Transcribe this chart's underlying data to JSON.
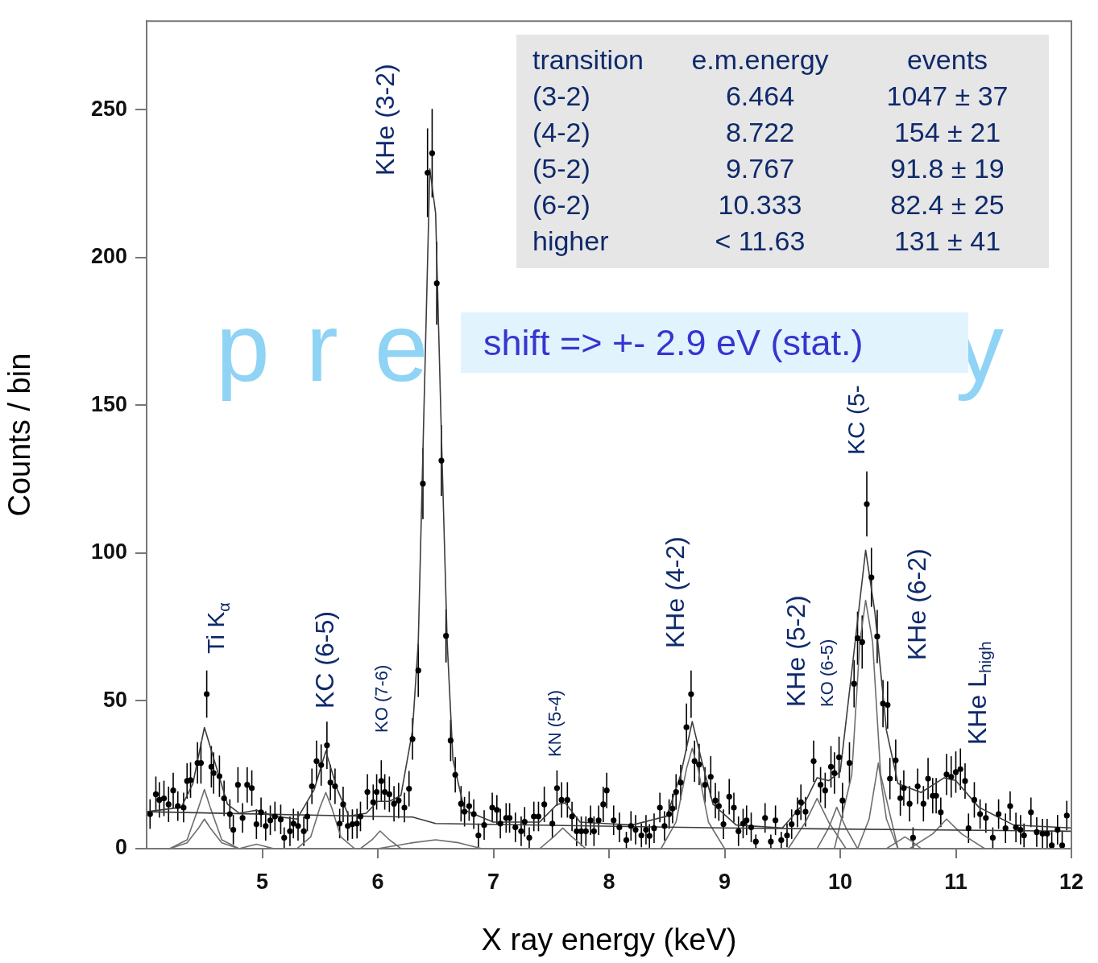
{
  "chart_data": {
    "type": "scatter",
    "xlabel": "X ray energy (keV)",
    "ylabel": "Counts / bin",
    "xlim": [
      4,
      12
    ],
    "xticks": [
      5,
      6,
      7,
      8,
      9,
      10,
      11,
      12
    ],
    "ylim": [
      0,
      280
    ],
    "yticks": [
      0,
      50,
      100,
      150,
      200,
      250
    ],
    "grid": false,
    "legend": false,
    "line_style": "solid",
    "annotations": [
      "transition",
      "e.m.energy",
      "events",
      "(3-2)",
      "6.464",
      "1047 ± 37",
      "(4-2)",
      "8.722",
      "154 ± 21",
      "(5-2)",
      "9.767",
      "91.8 ± 19",
      "(6-2)",
      "10.333",
      "82.4 ± 25",
      "higher",
      "< 11.63",
      "131 ± 41",
      "pre",
      "y",
      "shift => +- 2.9 eV (stat.)",
      "Ti K$_{α}$",
      "KC (6-5)",
      "KO (7-6)",
      "KHe (3-2)",
      "KN (5-4)",
      "KHe (4-2)",
      "KHe (5-2)",
      "KO (6-5)",
      "KC (5-",
      "KHe (6-2)",
      "KHe L$_{high}$"
    ],
    "series": [
      {
        "type": "scatter",
        "marker": "circle",
        "color": "#000000",
        "x": [
          4.03,
          4.08,
          4.11,
          4.15,
          4.19,
          4.23,
          4.27,
          4.32,
          4.35,
          4.38,
          4.44,
          4.47,
          4.52,
          4.56,
          4.58,
          4.63,
          4.67,
          4.72,
          4.75,
          4.79,
          4.83,
          4.87,
          4.91,
          4.95,
          4.99,
          5.03,
          5.07,
          5.11,
          5.16,
          5.19,
          5.24,
          5.27,
          5.31,
          5.36,
          5.39,
          5.43,
          5.47,
          5.51,
          5.56,
          5.59,
          5.63,
          5.67,
          5.7,
          5.74,
          5.78,
          5.82,
          5.85,
          5.91,
          5.96,
          5.99,
          6.03,
          6.06,
          6.1,
          6.14,
          6.18,
          6.23,
          6.27,
          6.3,
          6.35,
          6.39,
          6.43,
          6.47,
          6.51,
          6.55,
          6.59,
          6.63,
          6.67,
          6.72,
          6.75,
          6.79,
          6.83,
          6.87,
          6.92,
          6.99,
          7.03,
          7.06,
          7.11,
          7.14,
          7.19,
          7.24,
          7.27,
          7.31,
          7.35,
          7.39,
          7.44,
          7.51,
          7.55,
          7.59,
          7.64,
          7.68,
          7.72,
          7.76,
          7.8,
          7.84,
          7.87,
          7.91,
          7.95,
          7.98,
          8.04,
          8.09,
          8.15,
          8.19,
          8.23,
          8.28,
          8.32,
          8.35,
          8.39,
          8.44,
          8.48,
          8.52,
          8.55,
          8.58,
          8.62,
          8.67,
          8.71,
          8.74,
          8.78,
          8.83,
          8.88,
          8.92,
          8.95,
          8.99,
          9.04,
          9.08,
          9.12,
          9.16,
          9.19,
          9.23,
          9.27,
          9.35,
          9.4,
          9.44,
          9.49,
          9.54,
          9.58,
          9.63,
          9.66,
          9.7,
          9.77,
          9.83,
          9.87,
          9.92,
          9.95,
          9.99,
          10.02,
          10.08,
          10.12,
          10.15,
          10.19,
          10.23,
          10.27,
          10.32,
          10.37,
          10.41,
          10.43,
          10.48,
          10.52,
          10.55,
          10.6,
          10.63,
          10.67,
          10.72,
          10.76,
          10.8,
          10.83,
          10.87,
          10.92,
          10.96,
          11.0,
          11.04,
          11.08,
          11.11,
          11.16,
          11.21,
          11.26,
          11.32,
          11.37,
          11.43,
          11.47,
          11.52,
          11.56,
          11.59,
          11.65,
          11.7,
          11.75,
          11.79,
          11.83,
          11.88,
          11.92,
          11.96
        ],
        "values": [
          11.7,
          18.4,
          16.5,
          17,
          15,
          19.7,
          14.4,
          13.9,
          22.9,
          23.2,
          29,
          29,
          52.3,
          27.7,
          25.6,
          24.5,
          17,
          11.7,
          6.4,
          21.6,
          10.4,
          21.6,
          20.5,
          8.3,
          12.3,
          7.7,
          9.6,
          10.9,
          9.9,
          3.7,
          5.9,
          8.5,
          7.7,
          5.9,
          10.9,
          21.1,
          29.6,
          28.3,
          35,
          22.4,
          21.1,
          8.5,
          15,
          7.7,
          8.3,
          8.5,
          10.9,
          19.2,
          15.7,
          19.2,
          22.9,
          19.2,
          18.4,
          15.2,
          16.3,
          13.9,
          20.3,
          37.1,
          60.3,
          123.5,
          228.7,
          235.3,
          191.3,
          131.3,
          72,
          36.6,
          25,
          15.2,
          12.5,
          14.4,
          11.7,
          4.5,
          8,
          13.9,
          13.1,
          8.5,
          10.4,
          10.4,
          7.2,
          5.9,
          9.1,
          3.7,
          10.9,
          10.9,
          15,
          8.5,
          20.5,
          16.5,
          16.5,
          10.9,
          5.9,
          5.9,
          5.9,
          9.6,
          5.9,
          9.6,
          15,
          19.7,
          9.6,
          7.2,
          2.9,
          7.7,
          6.4,
          4.5,
          6.4,
          4.3,
          6.9,
          13.9,
          7.7,
          11.7,
          13.6,
          19.2,
          22.4,
          41.1,
          52.3,
          29.6,
          28.5,
          21.6,
          24.3,
          16.3,
          14.4,
          8.3,
          17.6,
          13.9,
          5.9,
          8.5,
          9.6,
          7.2,
          2.4,
          10.4,
          2.4,
          9.6,
          2.9,
          4.5,
          8.3,
          12.3,
          15.7,
          12.5,
          29.6,
          21.6,
          19.7,
          27.7,
          25.6,
          30.9,
          16.3,
          29,
          55.8,
          71.2,
          69.9,
          116.6,
          91.8,
          71.8,
          49.1,
          48.6,
          23.7,
          29.9,
          17.1,
          20.5,
          15.2,
          3.7,
          21.1,
          15.2,
          23.7,
          17.9,
          17.9,
          12.3,
          25.1,
          24.3,
          25.9,
          26.9,
          22.9,
          6.9,
          16.5,
          11.7,
          10.4,
          3.7,
          11.7,
          6.9,
          14.4,
          7.2,
          6.4,
          4.5,
          12.3,
          5.6,
          5.1,
          5.1,
          1.1,
          6.4,
          1.1,
          11.2
        ],
        "errors": [
          5,
          6,
          6,
          6,
          6,
          6,
          5,
          5,
          6,
          6,
          7,
          7,
          8,
          7,
          7,
          7,
          6,
          5,
          5,
          6,
          5,
          6,
          6,
          5,
          5,
          5,
          5,
          5,
          5,
          3.5,
          5,
          5,
          5,
          5,
          5,
          6,
          7,
          7,
          8,
          6,
          6,
          5,
          6,
          5,
          5,
          5,
          5,
          6,
          6,
          6,
          7,
          6,
          6,
          6,
          6,
          5,
          6,
          7,
          9,
          12,
          15,
          15,
          14,
          12,
          9,
          7,
          6,
          6,
          5,
          5,
          5,
          4,
          5,
          5,
          5,
          5,
          5,
          5,
          5,
          5,
          5,
          3.5,
          5,
          5,
          6,
          5,
          6,
          6,
          6,
          5,
          5,
          5,
          5,
          5,
          5,
          5,
          6,
          6,
          5,
          5,
          2.8,
          5,
          5,
          4,
          5,
          4,
          5,
          5,
          5,
          5,
          5,
          6,
          6,
          8,
          8,
          7,
          7,
          6,
          7,
          6,
          5,
          5,
          6,
          5,
          5,
          5,
          5,
          5,
          2.4,
          5,
          2.4,
          5,
          2.8,
          4,
          5,
          5,
          6,
          5,
          7,
          6,
          6,
          7,
          7,
          7,
          6,
          7,
          8,
          9,
          9,
          11,
          10,
          9,
          8,
          8,
          7,
          7,
          6,
          6,
          6,
          3.5,
          6,
          6,
          7,
          6,
          6,
          5,
          7,
          7,
          7,
          7,
          6,
          5,
          6,
          5,
          5,
          3.5,
          5,
          5,
          5,
          5,
          5,
          4,
          5,
          5,
          5,
          5,
          [
            0,
            6.1
          ],
          5,
          [
            0,
            6.1
          ],
          5
        ]
      },
      {
        "type": "line",
        "color": "#3c3c3c",
        "x": [
          4.0,
          4.3,
          4.4,
          4.5,
          4.6,
          4.7,
          4.8,
          4.95,
          5.1,
          5.3,
          5.45,
          5.55,
          5.65,
          5.75,
          5.9,
          6.0,
          6.1,
          6.2,
          6.3,
          6.35,
          6.4,
          6.45,
          6.5,
          6.55,
          6.6,
          6.65,
          6.75,
          7.0,
          7.4,
          7.55,
          7.62,
          7.75,
          8.2,
          8.5,
          8.62,
          8.72,
          8.8,
          8.9,
          9.1,
          9.5,
          9.7,
          9.8,
          9.9,
          10.0,
          10.1,
          10.22,
          10.3,
          10.4,
          10.5,
          10.7,
          10.9,
          11.0,
          11.2,
          11.5,
          12.0
        ],
        "values": [
          12.5,
          14,
          22,
          41,
          28,
          15,
          12,
          13,
          11,
          10,
          20,
          33,
          20,
          11,
          12,
          16,
          16,
          18,
          40,
          70,
          150,
          230,
          215,
          140,
          70,
          30,
          13,
          9,
          9,
          15,
          15.5,
          9,
          8,
          11,
          25,
          43,
          30,
          15,
          8,
          7,
          16,
          24,
          23,
          26,
          60,
          101,
          80,
          40,
          22,
          19,
          24,
          23,
          14,
          8,
          7
        ]
      },
      {
        "type": "line",
        "color": "#3c3c3c",
        "x": [
          4,
          6,
          6.3,
          6.5,
          9,
          12
        ],
        "values": [
          12.5,
          10.9,
          10.7,
          8.5,
          7,
          5.9
        ]
      },
      {
        "type": "line",
        "color": "#6e6e6e",
        "x": [
          4.2,
          4.35,
          4.45,
          4.5,
          4.55,
          4.65,
          4.8
        ],
        "values": [
          0,
          3,
          14,
          20,
          14,
          3,
          0
        ]
      },
      {
        "type": "line",
        "color": "#6e6e6e",
        "x": [
          4.2,
          4.35,
          4.45,
          4.5,
          4.55,
          4.65,
          4.8
        ],
        "values": [
          0,
          2,
          7,
          10,
          7,
          2,
          0
        ]
      },
      {
        "type": "line",
        "color": "#6e6e6e",
        "x": [
          4.8,
          4.9,
          4.95,
          5.0,
          5.1
        ],
        "values": [
          0,
          1,
          1.5,
          1,
          0
        ]
      },
      {
        "type": "line",
        "color": "#6e6e6e",
        "x": [
          5.3,
          5.42,
          5.5,
          5.55,
          5.6,
          5.68,
          5.8
        ],
        "values": [
          0,
          4,
          14,
          19,
          14,
          4,
          0
        ]
      },
      {
        "type": "line",
        "color": "#6e6e6e",
        "x": [
          5.85,
          5.95,
          6.02,
          6.1,
          6.2
        ],
        "values": [
          0,
          3,
          6,
          3,
          0
        ]
      },
      {
        "type": "line",
        "color": "#6e6e6e",
        "x": [
          6.0,
          6.3,
          6.5,
          6.7,
          6.9
        ],
        "values": [
          0,
          2,
          3,
          2,
          0
        ]
      },
      {
        "type": "line",
        "color": "#6e6e6e",
        "x": [
          7.4,
          7.52,
          7.6,
          7.68,
          7.8
        ],
        "values": [
          0,
          4,
          7,
          4,
          0
        ]
      },
      {
        "type": "line",
        "color": "#6e6e6e",
        "x": [
          8.45,
          8.58,
          8.67,
          8.72,
          8.77,
          8.86,
          9.0
        ],
        "values": [
          0,
          9,
          27,
          34,
          27,
          9,
          0
        ]
      },
      {
        "type": "line",
        "color": "#6e6e6e",
        "x": [
          9.55,
          9.7,
          9.8,
          9.9,
          10.05
        ],
        "values": [
          0,
          9,
          17,
          9,
          0
        ]
      },
      {
        "type": "line",
        "color": "#6e6e6e",
        "x": [
          9.8,
          9.9,
          9.97,
          10.05,
          10.15
        ],
        "values": [
          0,
          7,
          14,
          7,
          0
        ]
      },
      {
        "type": "line",
        "color": "#6e6e6e",
        "x": [
          9.95,
          10.1,
          10.17,
          10.22,
          10.28,
          10.35,
          10.5
        ],
        "values": [
          0,
          25,
          70,
          84,
          70,
          25,
          0
        ]
      },
      {
        "type": "line",
        "color": "#6e6e6e",
        "x": [
          10.15,
          10.25,
          10.33,
          10.4,
          10.5
        ],
        "values": [
          0,
          10,
          29,
          10,
          0
        ]
      },
      {
        "type": "line",
        "color": "#6e6e6e",
        "x": [
          10.4,
          10.5,
          10.56,
          10.62,
          10.7
        ],
        "values": [
          0,
          2.5,
          4,
          2.5,
          0
        ]
      },
      {
        "type": "line",
        "color": "#6e6e6e",
        "x": [
          10.6,
          10.8,
          10.92,
          11.05,
          11.25
        ],
        "values": [
          0,
          5,
          10,
          5,
          0
        ]
      }
    ]
  }
}
